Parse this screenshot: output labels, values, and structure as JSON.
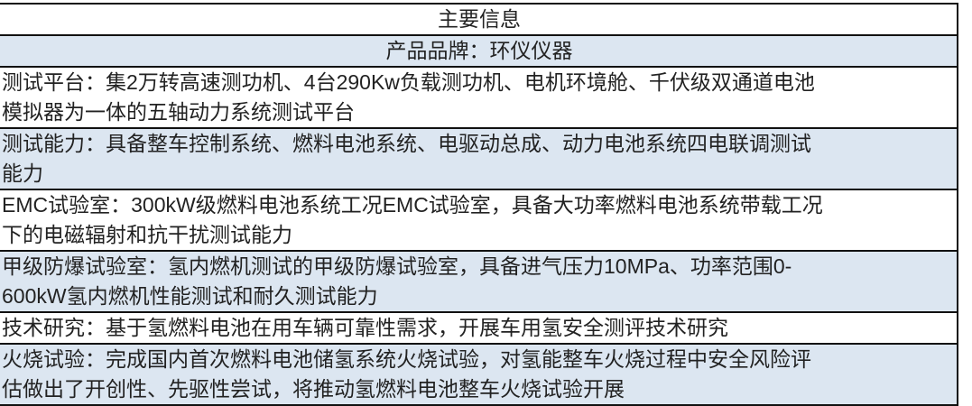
{
  "header": "主要信息",
  "brand": "产品品牌：环仪仪器",
  "rows": [
    {
      "lines": [
        "测试平台：集2万转高速测功机、4台290Kw负载测功机、电机环境舱、千伏级双通道电池",
        "模拟器为一体的五轴动力系统测试平台"
      ],
      "bg": "white"
    },
    {
      "lines": [
        "测试能力：具备整车控制系统、燃料电池系统、电驱动总成、动力电池系统四电联调测试",
        "能力"
      ],
      "bg": "blue"
    },
    {
      "lines": [
        "EMC试验室：300kW级燃料电池系统工况EMC试验室，具备大功率燃料电池系统带载工况",
        "下的电磁辐射和抗干扰测试能力"
      ],
      "bg": "white"
    },
    {
      "lines": [
        "甲级防爆试验室：氢内燃机测试的甲级防爆试验室，具备进气压力10MPa、功率范围0-",
        "600kW氢内燃机性能测试和耐久测试能力"
      ],
      "bg": "blue"
    },
    {
      "lines": [
        "技术研究：基于氢燃料电池在用车辆可靠性需求，开展车用氢安全测评技术研究"
      ],
      "bg": "white"
    },
    {
      "lines": [
        "火烧试验：完成国内首次燃料电池储氢系统火烧试验，对氢能整车火烧过程中安全风险评",
        "估做出了开创性、先驱性尝试，将推动氢燃料电池整车火烧试验开展"
      ],
      "bg": "blue"
    }
  ],
  "colors": {
    "row_blue": "#dce6f1",
    "row_white": "#ffffff",
    "border": "#111111"
  }
}
